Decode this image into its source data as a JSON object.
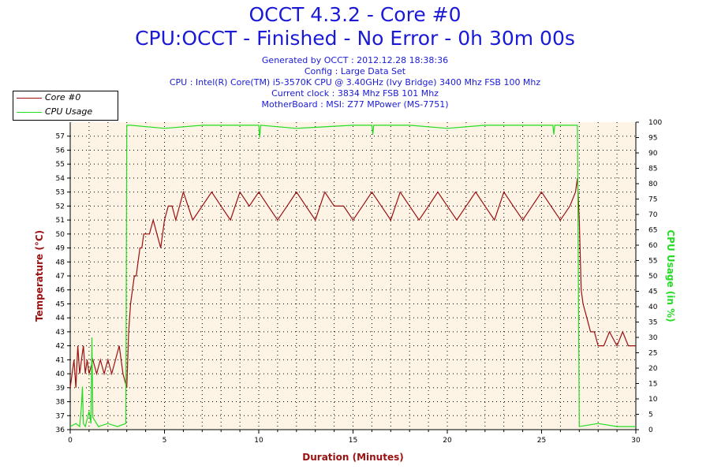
{
  "header": {
    "title_line1": "OCCT 4.3.2 - Core #0",
    "title_line2": "CPU:OCCT - Finished - No Error - 0h 30m 00s",
    "info": [
      "Generated by OCCT : 2012.12.28 18:38:36",
      "Config : Large Data Set",
      "CPU : Intel(R) Core(TM) i5-3570K CPU @ 3.40GHz (Ivy Bridge) 3400 Mhz FSB 100 Mhz",
      "Current clock : 3834 Mhz FSB 101 Mhz",
      "MotherBoard : MSI: Z77 MPower (MS-7751)"
    ]
  },
  "colors": {
    "temperature": "#9b1010",
    "cpu_usage": "#22dd22",
    "plot_bg": "#fdf4e6",
    "title": "#1a1ad6"
  },
  "chart_data": {
    "type": "line",
    "xlabel": "Duration (Minutes)",
    "ylabel": "Temperature (°C)",
    "y2label": "CPU Usage (in %)",
    "xlim": [
      0,
      30
    ],
    "ylim": [
      36,
      58
    ],
    "y2lim": [
      0,
      100
    ],
    "x_ticks": [
      0,
      5,
      10,
      15,
      20,
      25,
      30
    ],
    "y_ticks": [
      36,
      37,
      38,
      39,
      40,
      41,
      42,
      43,
      44,
      45,
      46,
      47,
      48,
      49,
      50,
      51,
      52,
      53,
      54,
      55,
      56,
      57
    ],
    "y2_ticks": [
      0,
      5,
      10,
      15,
      20,
      25,
      30,
      35,
      40,
      45,
      50,
      55,
      60,
      65,
      70,
      75,
      80,
      85,
      90,
      95,
      100
    ],
    "grid": true,
    "legend_position": "top-left",
    "series": [
      {
        "name": "Core #0",
        "axis": "left",
        "x": [
          0,
          0.1,
          0.2,
          0.3,
          0.4,
          0.5,
          0.6,
          0.7,
          0.8,
          0.9,
          1.0,
          1.2,
          1.4,
          1.6,
          1.8,
          2.0,
          2.2,
          2.4,
          2.6,
          2.8,
          3.0,
          3.05,
          3.1,
          3.2,
          3.3,
          3.4,
          3.5,
          3.6,
          3.7,
          3.8,
          3.9,
          4.0,
          4.2,
          4.4,
          4.6,
          4.8,
          5.0,
          5.2,
          5.4,
          5.6,
          5.8,
          6.0,
          6.5,
          7.0,
          7.5,
          8.0,
          8.5,
          9.0,
          9.5,
          10.0,
          10.5,
          11.0,
          11.5,
          12.0,
          12.5,
          13.0,
          13.5,
          14.0,
          14.5,
          15.0,
          15.5,
          16.0,
          16.5,
          17.0,
          17.5,
          18.0,
          18.5,
          19.0,
          19.5,
          20.0,
          20.5,
          21.0,
          21.5,
          22.0,
          22.5,
          23.0,
          23.5,
          24.0,
          24.5,
          25.0,
          25.5,
          26.0,
          26.5,
          26.8,
          26.9,
          27.0,
          27.1,
          27.2,
          27.4,
          27.6,
          27.8,
          28.0,
          28.3,
          28.6,
          29.0,
          29.3,
          29.6,
          30.0
        ],
        "values": [
          39,
          40,
          41,
          39,
          42,
          40,
          41,
          42,
          40,
          41,
          40,
          41,
          40,
          41,
          40,
          41,
          40,
          41,
          42,
          40,
          39,
          41,
          43,
          45,
          46,
          47,
          47,
          48,
          49,
          49,
          50,
          50,
          50,
          51,
          50,
          49,
          51,
          52,
          52,
          51,
          52,
          53,
          51,
          52,
          53,
          52,
          51,
          53,
          52,
          53,
          52,
          51,
          52,
          53,
          52,
          51,
          53,
          52,
          52,
          51,
          52,
          53,
          52,
          51,
          53,
          52,
          51,
          52,
          53,
          52,
          51,
          52,
          53,
          52,
          51,
          53,
          52,
          51,
          52,
          53,
          52,
          51,
          52,
          53,
          54,
          51,
          46,
          45,
          44,
          43,
          43,
          42,
          42,
          43,
          42,
          43,
          42,
          42
        ]
      },
      {
        "name": "CPU Usage",
        "axis": "right",
        "x": [
          0,
          0.3,
          0.5,
          0.6,
          0.65,
          0.7,
          0.8,
          1.0,
          1.1,
          1.15,
          1.2,
          1.5,
          2.0,
          2.5,
          2.95,
          3.0,
          3.2,
          5,
          7,
          10,
          10.05,
          10.1,
          12,
          15,
          16,
          16.05,
          16.1,
          18,
          20,
          22,
          24,
          25.6,
          25.65,
          25.7,
          26.9,
          26.95,
          27.0,
          28,
          29,
          30
        ],
        "values": [
          1,
          2,
          1,
          8,
          14,
          2,
          1,
          6,
          2,
          30,
          4,
          1,
          2,
          1,
          2,
          99,
          99,
          98,
          99,
          99,
          95,
          99,
          98,
          99,
          99,
          96,
          99,
          99,
          98,
          99,
          99,
          99,
          96,
          99,
          99,
          50,
          1,
          2,
          1,
          1
        ]
      }
    ]
  }
}
